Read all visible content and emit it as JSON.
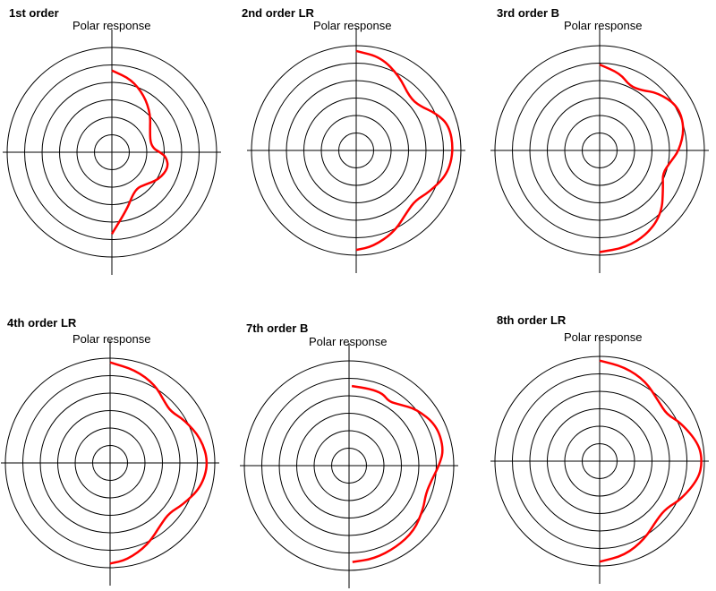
{
  "colors": {
    "response": "#ff0000",
    "grid": "#000000",
    "background": "#ffffff"
  },
  "chart_data": [
    {
      "type": "polar-line",
      "title": "1st order",
      "subtitle": "Polar response",
      "angle_range_deg": [
        -90,
        90
      ],
      "radial_max": 1.0,
      "radial_rings": 6,
      "series": [
        {
          "points": [
            [
              90,
              0.78
            ],
            [
              75,
              0.72
            ],
            [
              60,
              0.62
            ],
            [
              45,
              0.52
            ],
            [
              30,
              0.42
            ],
            [
              15,
              0.38
            ],
            [
              5,
              0.4
            ],
            [
              0,
              0.46
            ],
            [
              -5,
              0.52
            ],
            [
              -15,
              0.56
            ],
            [
              -30,
              0.52
            ],
            [
              -45,
              0.44
            ],
            [
              -55,
              0.42
            ],
            [
              -65,
              0.46
            ],
            [
              -75,
              0.56
            ],
            [
              -90,
              0.78
            ]
          ]
        }
      ]
    },
    {
      "type": "polar-line",
      "title": "2nd order LR",
      "subtitle": "Polar response",
      "angle_range_deg": [
        -90,
        90
      ],
      "radial_max": 1.0,
      "radial_rings": 6,
      "series": [
        {
          "points": [
            [
              90,
              0.95
            ],
            [
              75,
              0.92
            ],
            [
              60,
              0.82
            ],
            [
              45,
              0.72
            ],
            [
              35,
              0.74
            ],
            [
              25,
              0.84
            ],
            [
              15,
              0.92
            ],
            [
              0,
              0.93
            ],
            [
              -15,
              0.9
            ],
            [
              -30,
              0.8
            ],
            [
              -40,
              0.74
            ],
            [
              -50,
              0.76
            ],
            [
              -65,
              0.86
            ],
            [
              -80,
              0.93
            ],
            [
              -90,
              0.95
            ]
          ]
        }
      ]
    },
    {
      "type": "polar-line",
      "title": "3rd order B",
      "subtitle": "Polar response",
      "angle_range_deg": [
        -90,
        90
      ],
      "radial_max": 1.0,
      "radial_rings": 6,
      "series": [
        {
          "points": [
            [
              90,
              0.82
            ],
            [
              75,
              0.76
            ],
            [
              65,
              0.68
            ],
            [
              55,
              0.7
            ],
            [
              45,
              0.78
            ],
            [
              30,
              0.86
            ],
            [
              15,
              0.84
            ],
            [
              0,
              0.76
            ],
            [
              -10,
              0.68
            ],
            [
              -20,
              0.64
            ],
            [
              -30,
              0.7
            ],
            [
              -45,
              0.84
            ],
            [
              -60,
              0.92
            ],
            [
              -75,
              0.96
            ],
            [
              -90,
              0.97
            ]
          ]
        }
      ]
    },
    {
      "type": "polar-line",
      "title": "4th order LR",
      "subtitle": "Polar response",
      "angle_range_deg": [
        -90,
        90
      ],
      "radial_max": 1.0,
      "radial_rings": 6,
      "series": [
        {
          "points": [
            [
              90,
              0.96
            ],
            [
              75,
              0.92
            ],
            [
              60,
              0.86
            ],
            [
              48,
              0.78
            ],
            [
              40,
              0.76
            ],
            [
              30,
              0.82
            ],
            [
              15,
              0.9
            ],
            [
              0,
              0.94
            ],
            [
              -15,
              0.9
            ],
            [
              -30,
              0.8
            ],
            [
              -40,
              0.74
            ],
            [
              -50,
              0.76
            ],
            [
              -65,
              0.86
            ],
            [
              -80,
              0.94
            ],
            [
              -90,
              0.96
            ]
          ]
        }
      ]
    },
    {
      "type": "polar-line",
      "title": "7th order B",
      "subtitle": "Polar response",
      "angle_range_deg": [
        -90,
        90
      ],
      "radial_max": 1.0,
      "radial_rings": 6,
      "series": [
        {
          "points": [
            [
              88,
              0.76
            ],
            [
              75,
              0.76
            ],
            [
              65,
              0.76
            ],
            [
              58,
              0.72
            ],
            [
              50,
              0.76
            ],
            [
              40,
              0.84
            ],
            [
              25,
              0.92
            ],
            [
              10,
              0.92
            ],
            [
              0,
              0.86
            ],
            [
              -10,
              0.8
            ],
            [
              -20,
              0.78
            ],
            [
              -30,
              0.82
            ],
            [
              -45,
              0.88
            ],
            [
              -60,
              0.9
            ],
            [
              -75,
              0.92
            ],
            [
              -88,
              0.92
            ]
          ]
        }
      ]
    },
    {
      "type": "polar-line",
      "title": "8th order LR",
      "subtitle": "Polar response",
      "angle_range_deg": [
        -90,
        90
      ],
      "radial_max": 1.0,
      "radial_rings": 6,
      "series": [
        {
          "points": [
            [
              90,
              0.96
            ],
            [
              75,
              0.93
            ],
            [
              60,
              0.88
            ],
            [
              45,
              0.8
            ],
            [
              35,
              0.78
            ],
            [
              25,
              0.86
            ],
            [
              10,
              0.96
            ],
            [
              0,
              0.98
            ],
            [
              -10,
              0.96
            ],
            [
              -25,
              0.86
            ],
            [
              -35,
              0.78
            ],
            [
              -45,
              0.78
            ],
            [
              -60,
              0.86
            ],
            [
              -75,
              0.93
            ],
            [
              -90,
              0.96
            ]
          ]
        }
      ]
    }
  ]
}
